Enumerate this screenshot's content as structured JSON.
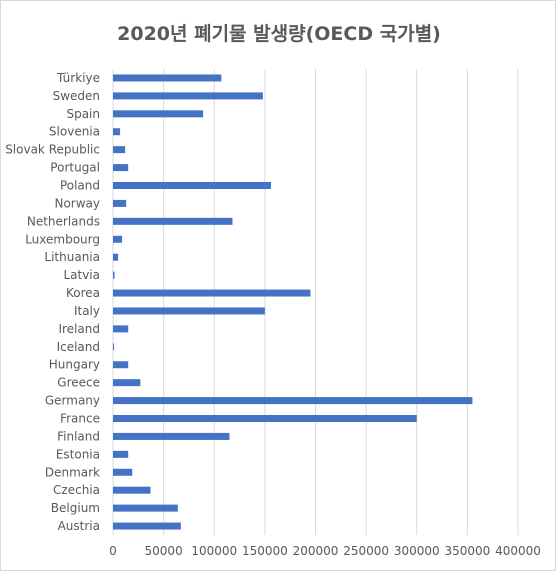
{
  "chart_data": {
    "type": "bar",
    "orientation": "horizontal",
    "title": "2020년 폐기물 발생량(OECD 국가별)",
    "xlabel": "",
    "ylabel": "",
    "xlim": [
      0,
      400000
    ],
    "x_ticks": [
      0,
      50000,
      100000,
      150000,
      200000,
      250000,
      300000,
      350000,
      400000
    ],
    "grid": "vertical",
    "legend": "none",
    "bar_color": "#4472c4",
    "categories": [
      "Türkiye",
      "Sweden",
      "Spain",
      "Slovenia",
      "Slovak Republic",
      "Portugal",
      "Poland",
      "Norway",
      "Netherlands",
      "Luxembourg",
      "Lithuania",
      "Latvia",
      "Korea",
      "Italy",
      "Ireland",
      "Iceland",
      "Hungary",
      "Greece",
      "Germany",
      "France",
      "Finland",
      "Estonia",
      "Denmark",
      "Czechia",
      "Belgium",
      "Austria"
    ],
    "values": [
      107000,
      148000,
      89000,
      7000,
      12000,
      15000,
      156000,
      13000,
      118000,
      9000,
      5000,
      1500,
      195000,
      150000,
      15000,
      500,
      15000,
      27000,
      355000,
      300000,
      115000,
      15000,
      19000,
      37000,
      64000,
      67000
    ]
  }
}
